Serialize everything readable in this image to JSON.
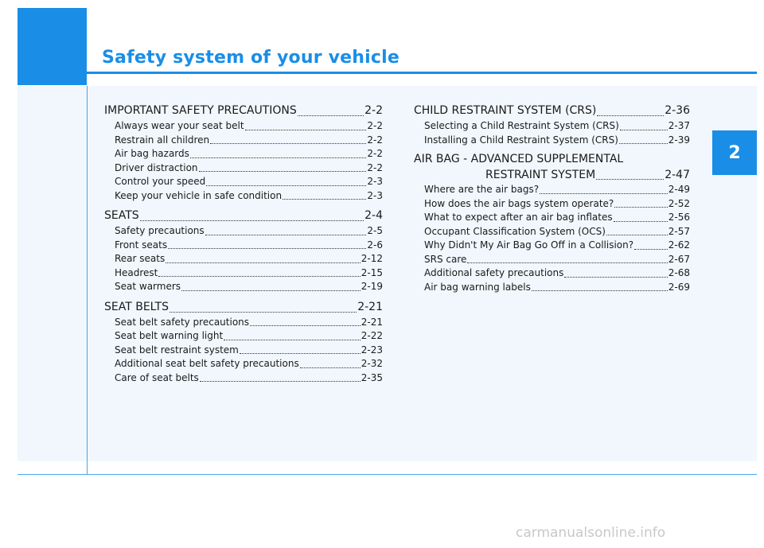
{
  "header": {
    "title": "Safety system of your vehicle",
    "chapter": "2"
  },
  "left_sections": [
    {
      "heading": "IMPORTANT SAFETY PRECAUTIONS",
      "page": "2-2",
      "items": [
        {
          "label": "Always wear your seat belt",
          "page": "2-2"
        },
        {
          "label": "Restrain all children",
          "page": "2-2"
        },
        {
          "label": "Air bag hazards",
          "page": "2-2"
        },
        {
          "label": "Driver distraction",
          "page": "2-2"
        },
        {
          "label": "Control your speed",
          "page": "2-3"
        },
        {
          "label": "Keep your vehicle in safe condition",
          "page": "2-3"
        }
      ]
    },
    {
      "heading": "SEATS",
      "page": "2-4",
      "items": [
        {
          "label": "Safety precautions",
          "page": "2-5"
        },
        {
          "label": "Front seats",
          "page": "2-6"
        },
        {
          "label": "Rear seats",
          "page": "2-12"
        },
        {
          "label": "Headrest",
          "page": "2-15"
        },
        {
          "label": "Seat warmers",
          "page": "2-19"
        }
      ]
    },
    {
      "heading": "SEAT BELTS",
      "page": "2-21",
      "items": [
        {
          "label": "Seat belt safety precautions",
          "page": "2-21"
        },
        {
          "label": "Seat belt warning light",
          "page": "2-22"
        },
        {
          "label": "Seat belt restraint system",
          "page": "2-23"
        },
        {
          "label": "Additional seat belt safety precautions",
          "page": "2-32"
        },
        {
          "label": "Care of seat belts",
          "page": "2-35"
        }
      ]
    }
  ],
  "right_sections": [
    {
      "heading": "CHILD RESTRAINT SYSTEM (CRS)",
      "page": "2-36",
      "items": [
        {
          "label": "Selecting a Child Restraint System (CRS)",
          "page": "2-37"
        },
        {
          "label": "Installing a Child Restraint System (CRS)",
          "page": "2-39"
        }
      ]
    },
    {
      "heading_line1": "AIR BAG - ADVANCED SUPPLEMENTAL",
      "heading_line2": "RESTRAINT SYSTEM",
      "page": "2-47",
      "items": [
        {
          "label": "Where are the air bags?",
          "page": "2-49"
        },
        {
          "label": "How does the air bags system operate?",
          "page": "2-52"
        },
        {
          "label": "What to expect after an air bag inflates",
          "page": "2-56"
        },
        {
          "label": "Occupant Classification System (OCS)",
          "page": "2-57"
        },
        {
          "label": "Why Didn't My Air Bag Go Off in a Collision?",
          "page": "2-62"
        },
        {
          "label": "SRS care",
          "page": "2-67"
        },
        {
          "label": "Additional safety precautions",
          "page": "2-68"
        },
        {
          "label": "Air bag warning labels",
          "page": "2-69"
        }
      ]
    }
  ],
  "watermark": "carmanualsonline.info"
}
